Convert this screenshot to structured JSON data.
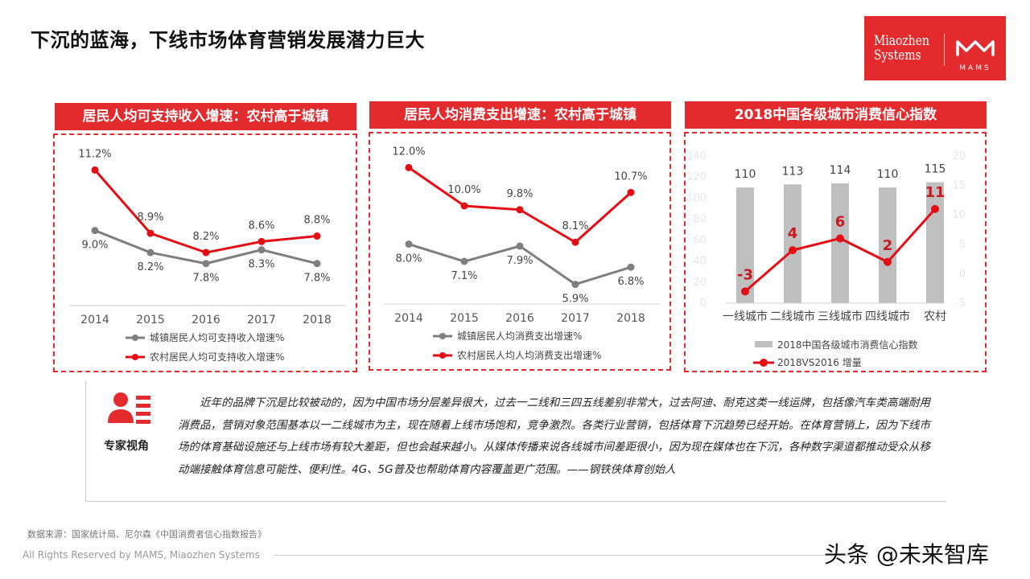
{
  "page": {
    "title": "下沉的蓝海，下线市场体育营销发展潜力巨大"
  },
  "logo": {
    "line1": "Miaozhen",
    "line2": "Systems",
    "sub": "MAMS",
    "brand_color": "#e32b2e"
  },
  "panels": [
    {
      "title": "居民人均可支持收入增速：农村高于城镇"
    },
    {
      "title": "居民人均消费支出增速：农村高于城镇"
    },
    {
      "title": "2018中国各级城市消费信心指数"
    }
  ],
  "chart_data": [
    {
      "type": "line",
      "categories": [
        "2014",
        "2015",
        "2016",
        "2017",
        "2018"
      ],
      "series": [
        {
          "name": "城镇居民人均可支持收入增速%",
          "values": [
            9.0,
            8.2,
            7.8,
            8.3,
            7.8
          ],
          "labels": [
            "9.0%",
            "8.2%",
            "7.8%",
            "8.3%",
            "7.8%"
          ],
          "color": "#7f7f7f"
        },
        {
          "name": "农村居民人均可支持收入增速%",
          "values": [
            11.2,
            8.9,
            8.2,
            8.6,
            8.8
          ],
          "labels": [
            "11.2%",
            "8.9%",
            "8.2%",
            "8.6%",
            "8.8%"
          ],
          "color": "#e50d14"
        }
      ],
      "legend_position": "bottom",
      "grid": false
    },
    {
      "type": "line",
      "categories": [
        "2014",
        "2015",
        "2016",
        "2017",
        "2018"
      ],
      "series": [
        {
          "name": "城镇居民人均消费支出增速%",
          "values": [
            8.0,
            7.1,
            7.9,
            5.9,
            6.8
          ],
          "labels": [
            "8.0%",
            "7.1%",
            "7.9%",
            "5.9%",
            "6.8%"
          ],
          "color": "#7f7f7f"
        },
        {
          "name": "农村居民人均人均消费支出增速%",
          "values": [
            12.0,
            10.0,
            9.8,
            8.1,
            10.7
          ],
          "labels": [
            "12.0%",
            "10.0%",
            "9.8%",
            "8.1%",
            "10.7%"
          ],
          "color": "#e50d14"
        }
      ],
      "legend_position": "bottom",
      "grid": false
    },
    {
      "type": "bar",
      "categories": [
        "一线城市",
        "二线城市",
        "三线城市",
        "四线城市",
        "农村"
      ],
      "series": [
        {
          "name": "2018中国各级城市消费信心指数",
          "type": "bar",
          "values": [
            110,
            113,
            114,
            110,
            115
          ],
          "labels": [
            "110",
            "113",
            "114",
            "110",
            "115"
          ],
          "color": "#bfbfbf"
        },
        {
          "name": "2018VS2016 增量",
          "type": "line",
          "values": [
            -3,
            4,
            6,
            2,
            11
          ],
          "labels": [
            "-3",
            "4",
            "6",
            "2",
            "11"
          ],
          "color": "#e50d14"
        }
      ],
      "ylim_left": [
        0,
        140
      ],
      "yticks_left": [
        "0",
        "20",
        "40",
        "60",
        "80",
        "100",
        "120",
        "140"
      ],
      "ylim_right": [
        -5,
        20
      ],
      "yticks_right": [
        "-5",
        "0",
        "5",
        "10",
        "15",
        "20"
      ],
      "legend_position": "bottom",
      "grid": false
    }
  ],
  "expert": {
    "label": "专家视角",
    "text": "近年的品牌下沉是比较被动的，因为中国市场分层差异很大，过去一二线和三四五线差别非常大，过去阿迪、耐克这类一线运牌，包括像汽车类高端耐用消费品，营销对象范围基本以一二线城市为主，现在随着上线市场饱和，竞争激烈。各类行业营销，包括体育下沉趋势已经开始。在体育营销上，因为下线市场的体育基础设施还与上线市场有较大差距，但也会越来越小。从媒体传播来说各线城市间差距很小，因为现在媒体也在下沉，各种数字渠道都推动受众从移动端接触体育信息可能性、便利性。4G、5G普及也帮助体育内容覆盖更广范围。——钢铁侠体育创始人"
  },
  "footer": {
    "source": "数据来源：国家统计局、尼尔森《中国消费者信心指数报告》",
    "copyright": "All Rights Reserved by MAMS, Miaozhen Systems",
    "watermark": "头条 @未来智库"
  }
}
